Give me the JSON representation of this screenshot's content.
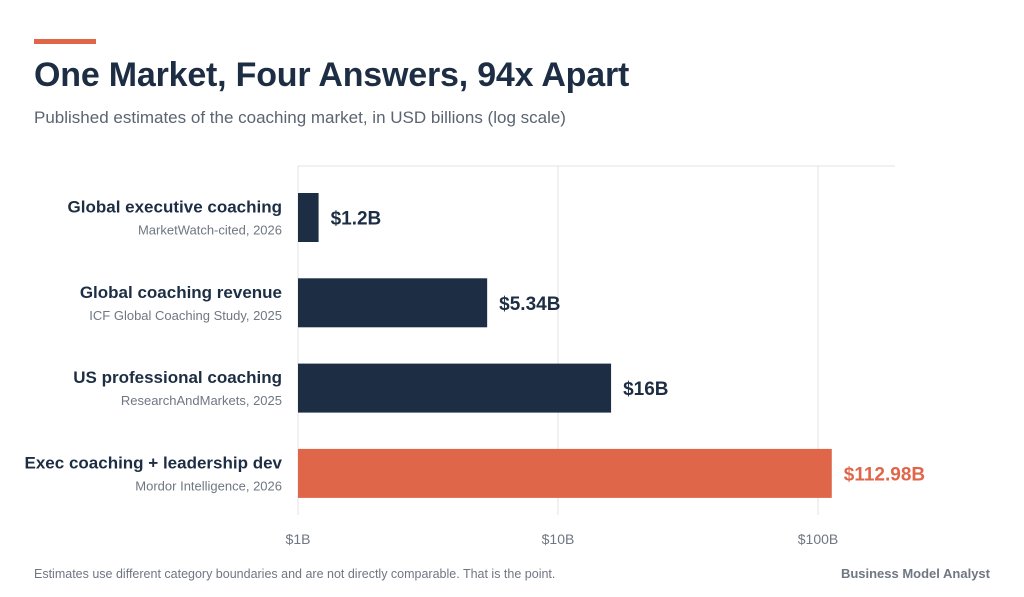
{
  "title": "One Market, Four Answers, 94x Apart",
  "subtitle": "Published estimates of the coaching market, in USD billions (log scale)",
  "footnote": "Estimates use different category boundaries and are not directly comparable. That is the point.",
  "brand": "Business Model Analyst",
  "colors": {
    "accent": "#e0664a",
    "bar": "#1d2e44",
    "highlight": "#e0664a",
    "grid": "#e3e3e3",
    "tick": "#6f7782",
    "source": "#6f7782"
  },
  "chart_data": {
    "type": "bar",
    "orientation": "horizontal",
    "scale": "log",
    "title": "One Market, Four Answers, 94x Apart",
    "xlabel": "",
    "ylabel": "",
    "xlim": [
      1,
      200
    ],
    "ticks": [
      {
        "value": 1,
        "label": "$1B"
      },
      {
        "value": 10,
        "label": "$10B"
      },
      {
        "value": 100,
        "label": "$100B"
      }
    ],
    "grid": true,
    "categories": [
      "Global executive coaching",
      "Global coaching revenue",
      "US professional coaching",
      "Exec coaching + leadership dev"
    ],
    "sources": [
      "MarketWatch-cited, 2026",
      "ICF Global Coaching Study, 2025",
      "ResearchAndMarkets, 2025",
      "Mordor Intelligence, 2026"
    ],
    "values": [
      1.2,
      5.34,
      16,
      112.98
    ],
    "value_labels": [
      "$1.2B",
      "$5.34B",
      "$16B",
      "$112.98B"
    ],
    "highlight_index": 3
  }
}
